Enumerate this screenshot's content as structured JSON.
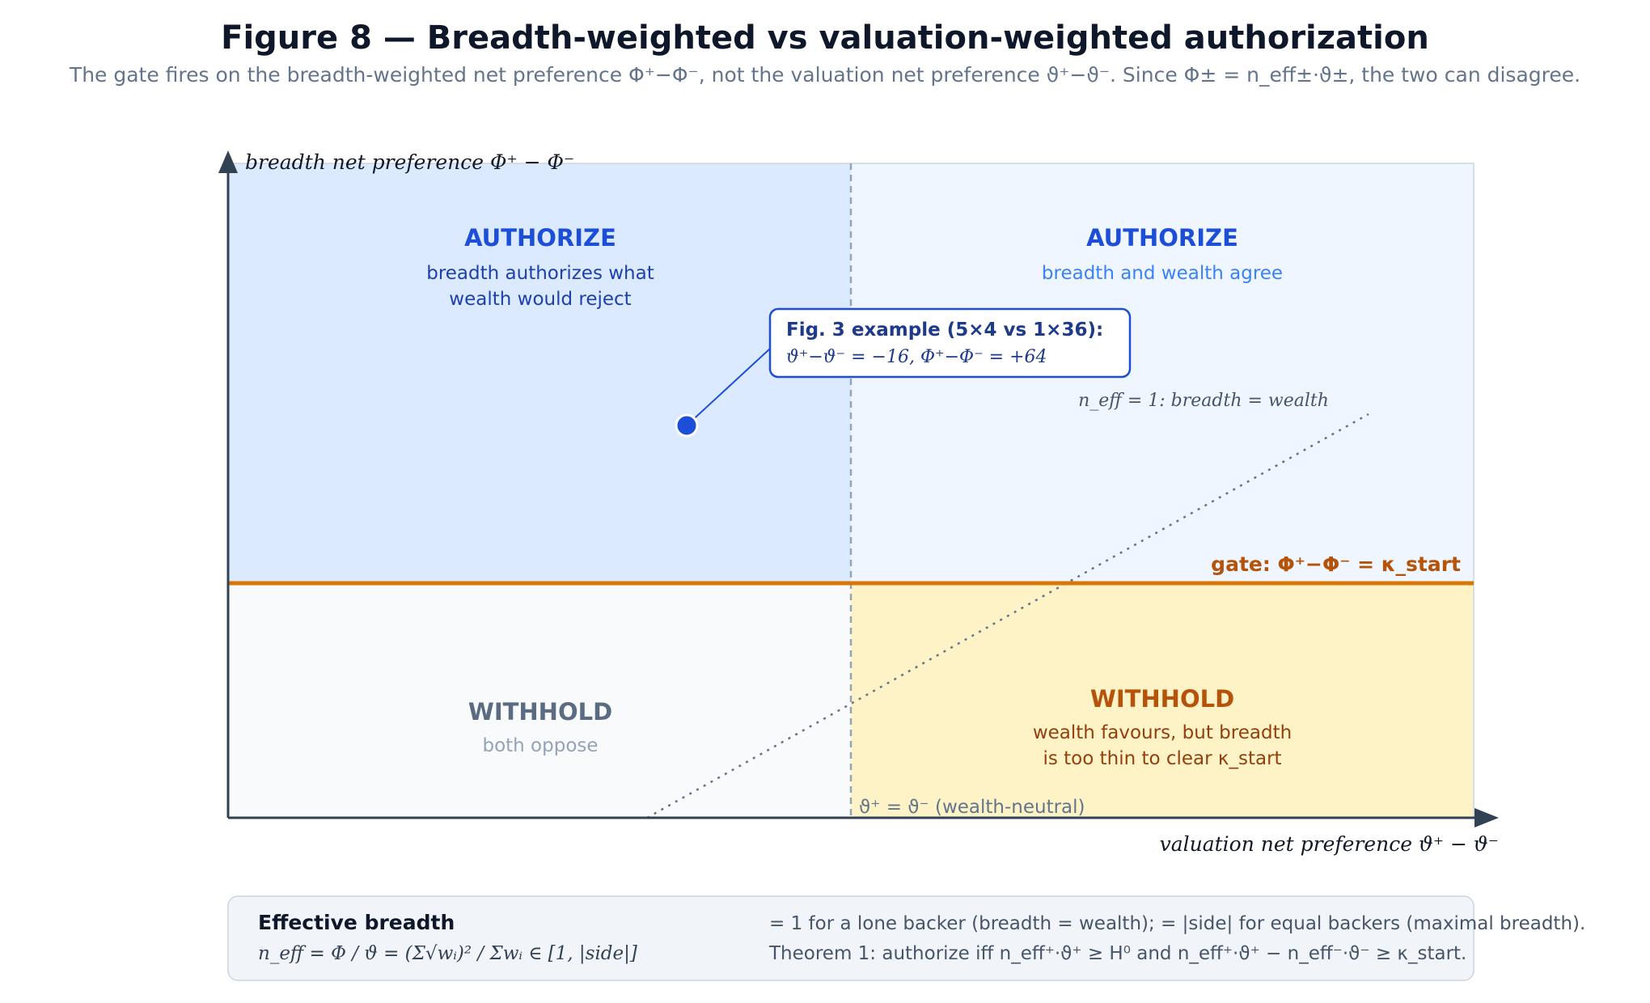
{
  "title": "Figure 8 — Breadth-weighted vs valuation-weighted authorization",
  "subtitle": "The gate fires on the breadth-weighted net preference Φ⁺−Φ⁻, not the valuation net preference ϑ⁺−ϑ⁻. Since Φ± = n_eff±·ϑ±, the two can disagree.",
  "axes": {
    "y_label": "breadth net preference Φ⁺ − Φ⁻",
    "x_label": "valuation net preference ϑ⁺ − ϑ⁻"
  },
  "quadrants": {
    "top_left": {
      "heading": "AUTHORIZE",
      "line1": "breadth authorizes what",
      "line2": "wealth would reject"
    },
    "top_right": {
      "heading": "AUTHORIZE",
      "line1": "breadth and wealth agree"
    },
    "bottom_left": {
      "heading": "WITHHOLD",
      "line1": "both oppose"
    },
    "bottom_right": {
      "heading": "WITHHOLD",
      "line1": "wealth favours, but breadth",
      "line2": "is too thin to clear κ_start"
    }
  },
  "gate_label": "gate: Φ⁺−Φ⁻ = κ_start",
  "diagonal_label": "n_eff = 1: breadth = wealth",
  "neutral_label": "ϑ⁺ = ϑ⁻ (wealth-neutral)",
  "callout": {
    "title": "Fig. 3 example (5×4 vs 1×36):",
    "formula": "ϑ⁺−ϑ⁻ = −16, Φ⁺−Φ⁻ = +64"
  },
  "footer": {
    "heading": "Effective breadth",
    "formula": "n_eff = Φ / ϑ = (Σ√wᵢ)² / Σwᵢ ∈ [1, |side|]",
    "note1": "= 1 for a lone backer (breadth = wealth); = |side| for equal backers (maximal breadth).",
    "note2": "Theorem 1: authorize iff n_eff⁺·ϑ⁺ ≥ H⁰ and n_eff⁺·ϑ⁺ − n_eff⁻·ϑ⁻ ≥ κ_start."
  },
  "colors": {
    "authorize": "#1d4ed8",
    "withhold_gray": "#5b6b82",
    "withhold_amber": "#b45309",
    "gate": "#d97706",
    "axis": "#334155"
  }
}
